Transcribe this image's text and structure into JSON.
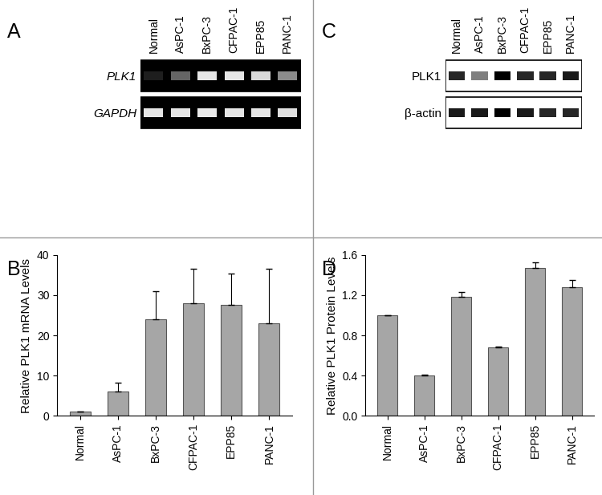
{
  "chart_data": [
    {
      "type": "gel",
      "title": "A",
      "categories": [
        "Normal",
        "AsPC-1",
        "BxPC-3",
        "CFPAC-1",
        "EPP85",
        "PANC-1"
      ],
      "rows": [
        {
          "name": "PLK1",
          "intensity": [
            0.12,
            0.4,
            0.9,
            0.9,
            0.85,
            0.55
          ]
        },
        {
          "name": "GAPDH",
          "intensity": [
            0.9,
            0.9,
            0.92,
            0.9,
            0.9,
            0.88
          ]
        }
      ]
    },
    {
      "type": "bar",
      "title": "B",
      "categories": [
        "Normal",
        "AsPC-1",
        "BxPC-3",
        "CFPAC-1",
        "EPP85",
        "PANC-1"
      ],
      "values": [
        1,
        6,
        24,
        28,
        27.5,
        23
      ],
      "errors": [
        0,
        2.3,
        7,
        8.5,
        7.8,
        13.5
      ],
      "y_label": "Relative PLK1 mRNA Levels",
      "color": "#a6a6a6",
      "ylim": [
        0,
        40
      ],
      "yticks": [
        0,
        10,
        20,
        30,
        40
      ]
    },
    {
      "type": "blot",
      "title": "C",
      "categories": [
        "Normal",
        "AsPC-1",
        "BxPC-3",
        "CFPAC-1",
        "EPP85",
        "PANC-1"
      ],
      "rows": [
        {
          "name": "PLK1",
          "intensity": [
            0.85,
            0.5,
            1.0,
            0.85,
            0.85,
            0.9
          ]
        },
        {
          "name": "β-actin",
          "intensity": [
            0.9,
            0.9,
            1.0,
            0.9,
            0.85,
            0.85
          ]
        }
      ]
    },
    {
      "type": "bar",
      "title": "D",
      "categories": [
        "Normal",
        "AsPC-1",
        "BxPC-3",
        "CFPAC-1",
        "EPP85",
        "PANC-1"
      ],
      "values": [
        1.0,
        0.4,
        1.18,
        0.68,
        1.47,
        1.28
      ],
      "errors": [
        0,
        0.01,
        0.05,
        0.01,
        0.06,
        0.07
      ],
      "y_label": "Relative PLK1 Protein Levels",
      "color": "#a6a6a6",
      "ylim": [
        0.0,
        1.6
      ],
      "yticks": [
        0.0,
        0.4,
        0.8,
        1.2,
        1.6
      ]
    }
  ]
}
